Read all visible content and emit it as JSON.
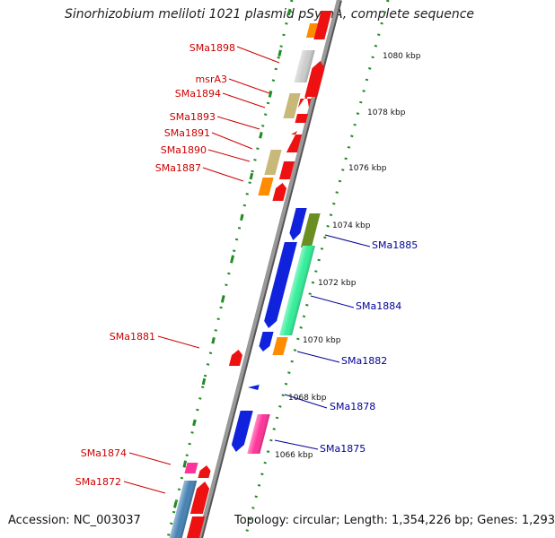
{
  "title": "Sinorhizobium meliloti 1021 plasmid pSymA, complete sequence",
  "footer": {
    "accession": "Accession: NC_003037",
    "topology": "Topology: circular; Length: 1,354,226 bp; Genes: 1,293"
  },
  "colors": {
    "left_label": "#cc0000",
    "right_label": "#000099",
    "backbone": "#888888",
    "gc_dots": "#228b22"
  },
  "kbp_ticks": [
    "1080 kbp",
    "1078 kbp",
    "1076 kbp",
    "1074 kbp",
    "1072 kbp",
    "1070 kbp",
    "1068 kbp",
    "1066 kbp"
  ],
  "left_labels": [
    "SMa1898",
    "msrA3",
    "SMa1894",
    "SMa1893",
    "SMa1891",
    "SMa1890",
    "SMa1887",
    "SMa1881",
    "SMa1874",
    "SMa1872"
  ],
  "right_labels": [
    "SMa1885",
    "SMa1884",
    "SMa1882",
    "SMa1878",
    "SMa1875"
  ],
  "genes": [
    {
      "color": "#ff8c00"
    },
    {
      "color": "#ee1111"
    },
    {
      "color": "#cccccc"
    },
    {
      "color": "#ee1111"
    },
    {
      "color": "#c8b87a"
    },
    {
      "color": "#ee1111"
    },
    {
      "color": "#ee1111"
    },
    {
      "color": "#ee1111"
    },
    {
      "color": "#c8b87a"
    },
    {
      "color": "#ee1111"
    },
    {
      "color": "#ff8c00"
    },
    {
      "color": "#ee1111"
    },
    {
      "color": "#1122dd"
    },
    {
      "color": "#6b8e23"
    },
    {
      "color": "#1122dd"
    },
    {
      "color": "#33ee99"
    },
    {
      "color": "#1122dd"
    },
    {
      "color": "#ff8c00"
    },
    {
      "color": "#ee1111"
    },
    {
      "color": "#1122dd"
    },
    {
      "color": "#1122dd"
    },
    {
      "color": "#ff3399"
    },
    {
      "color": "#ff3399"
    },
    {
      "color": "#ee1111"
    },
    {
      "color": "#4682b4"
    },
    {
      "color": "#ee1111"
    },
    {
      "color": "#ee1111"
    }
  ]
}
